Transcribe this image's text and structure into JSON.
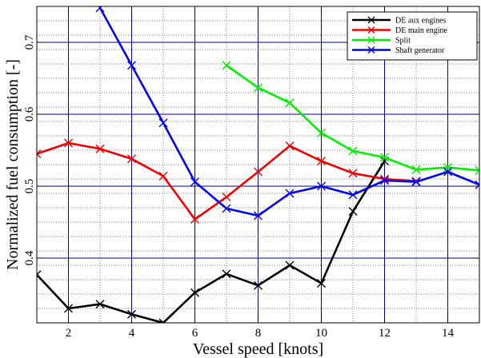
{
  "chart_data": {
    "type": "line",
    "xlabel": "Vessel speed [knots]",
    "ylabel": "Normalized fuel consumption [-]",
    "xlim": [
      1,
      15
    ],
    "ylim": [
      0.31,
      0.75
    ],
    "x_major_ticks": [
      2,
      4,
      6,
      8,
      10,
      12,
      14
    ],
    "y_major_ticks": [
      0.4,
      0.5,
      0.6,
      0.7
    ],
    "x_minor_step": 1,
    "y_minor_step": 0.02,
    "x_tick_labels": [
      "2",
      "4",
      "6",
      "8",
      "10",
      "12",
      "14"
    ],
    "y_tick_labels": [
      "0.4",
      "0.5",
      "0.6",
      "0.7"
    ],
    "grid": true,
    "legend_position": "top-right",
    "series": [
      {
        "name": "DE aux engines",
        "color": "#000000",
        "marker": "x",
        "x": [
          1,
          2,
          3,
          4,
          5,
          6,
          7,
          8,
          9,
          10,
          11,
          12
        ],
        "y": [
          0.377,
          0.33,
          0.336,
          0.322,
          0.31,
          0.352,
          0.378,
          0.362,
          0.39,
          0.365,
          0.465,
          0.535
        ]
      },
      {
        "name": "DE main engine",
        "color": "#ee0000",
        "marker": "x",
        "x": [
          1,
          2,
          3,
          4,
          5,
          6,
          7,
          8,
          9,
          10,
          11,
          12,
          13
        ],
        "y": [
          0.545,
          0.56,
          0.552,
          0.538,
          0.514,
          0.454,
          0.485,
          0.52,
          0.556,
          0.535,
          0.518,
          0.51,
          0.507
        ]
      },
      {
        "name": "Split",
        "color": "#00ee00",
        "marker": "x",
        "x": [
          7,
          8,
          9,
          10,
          11,
          12,
          13,
          14,
          15
        ],
        "y": [
          0.668,
          0.637,
          0.616,
          0.574,
          0.549,
          0.54,
          0.523,
          0.526,
          0.522
        ]
      },
      {
        "name": "Shaft generator",
        "color": "#0000ee",
        "marker": "x",
        "x": [
          3,
          4,
          5,
          6,
          7,
          8,
          9,
          10,
          11,
          12,
          13,
          14,
          15
        ],
        "y": [
          0.748,
          0.668,
          0.588,
          0.506,
          0.469,
          0.459,
          0.49,
          0.5,
          0.488,
          0.508,
          0.506,
          0.52,
          0.502
        ]
      }
    ]
  }
}
